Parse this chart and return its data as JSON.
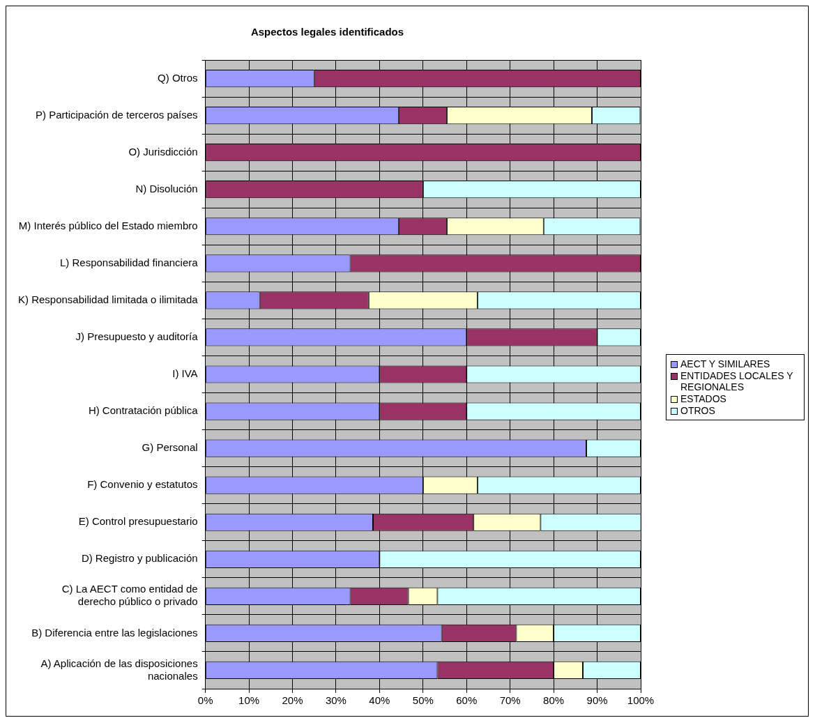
{
  "chart_data": {
    "type": "bar",
    "orientation": "horizontal",
    "stacked": true,
    "title": "Aspectos legales identificados",
    "categories": [
      "Q) Otros",
      "P) Participación de terceros países",
      "O) Jurisdicción",
      "N) Disolución",
      "M) Interés público del Estado miembro",
      "L) Responsabilidad financiera",
      "K) Responsabilidad limitada o ilimitada",
      "J) Presupuesto y auditoría",
      "I) IVA",
      "H) Contratación pública",
      "G) Personal",
      "F) Convenio y estatutos",
      "E) Control presupuestario",
      "D) Registro y publicación",
      "C) La AECT como entidad de\nderecho público o privado",
      "B) Diferencia entre las legislaciones",
      "A) Aplicación de las disposiciones\nnacionales"
    ],
    "series": [
      {
        "name": "AECT Y SIMILARES",
        "color": "#9999ff",
        "values": [
          25,
          44.4,
          0,
          0,
          44.4,
          33.3,
          12.5,
          60,
          40,
          40,
          87.5,
          50,
          38.5,
          40,
          33.3,
          54.3,
          53.3
        ]
      },
      {
        "name": "ENTIDADES LOCALES Y REGIONALES",
        "color": "#993366",
        "values": [
          75,
          11.1,
          100,
          50,
          11.1,
          66.7,
          25,
          30,
          20,
          20,
          0,
          0,
          23.1,
          0,
          13.3,
          17.1,
          26.7
        ]
      },
      {
        "name": "ESTADOS",
        "color": "#ffffcc",
        "values": [
          0,
          33.3,
          0,
          0,
          22.2,
          0,
          25,
          0,
          0,
          0,
          0,
          12.5,
          15.4,
          0,
          6.7,
          8.6,
          6.7
        ]
      },
      {
        "name": "OTROS",
        "color": "#ccffff",
        "values": [
          0,
          11.1,
          0,
          50,
          22.2,
          0,
          37.5,
          10,
          40,
          40,
          12.5,
          37.5,
          23.1,
          60,
          46.7,
          20,
          13.3
        ]
      }
    ],
    "xlim": [
      0,
      100
    ],
    "xticks": [
      {
        "value": 0,
        "label": "0%"
      },
      {
        "value": 10,
        "label": "10%"
      },
      {
        "value": 20,
        "label": "20%"
      },
      {
        "value": 30,
        "label": "30%"
      },
      {
        "value": 40,
        "label": "40%"
      },
      {
        "value": 50,
        "label": "50%"
      },
      {
        "value": 60,
        "label": "60%"
      },
      {
        "value": 70,
        "label": "70%"
      },
      {
        "value": 80,
        "label": "80%"
      },
      {
        "value": 90,
        "label": "90%"
      },
      {
        "value": 100,
        "label": "100%"
      }
    ],
    "grid": true,
    "legend": "right"
  }
}
